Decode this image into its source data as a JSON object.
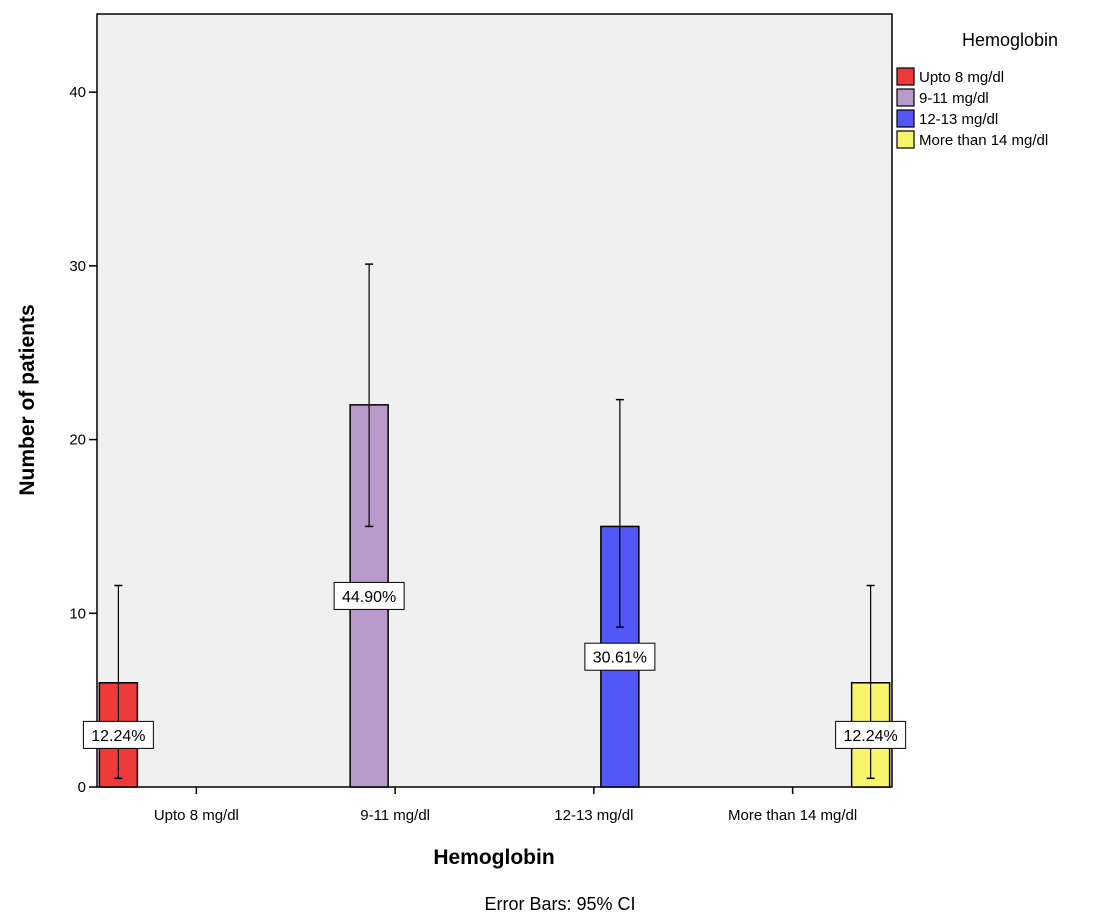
{
  "chart_data": {
    "type": "bar",
    "categories": [
      "Upto 8 mg/dl",
      "9-11 mg/dl",
      "12-13 mg/dl",
      "More than 14 mg/dl"
    ],
    "values": [
      6,
      22,
      15,
      6
    ],
    "error_bars": [
      {
        "low": 0.5,
        "high": 11.6
      },
      {
        "low": 15.0,
        "high": 30.1
      },
      {
        "low": 9.2,
        "high": 22.3
      },
      {
        "low": 0.5,
        "high": 11.6
      }
    ],
    "data_labels": [
      "12.24%",
      "44.90%",
      "30.61%",
      "12.24%"
    ],
    "colors": [
      "#ee3a3a",
      "#b79ac9",
      "#5257f7",
      "#f8f56a"
    ],
    "xlabel": "Hemoglobin",
    "ylabel": "Number of patients",
    "ylim": [
      0,
      44.5
    ],
    "yticks": [
      0,
      10,
      20,
      30,
      40
    ],
    "legend": {
      "title": "Hemoglobin",
      "placement": "right",
      "entries": [
        "Upto 8 mg/dl",
        "9-11 mg/dl",
        "12-13 mg/dl",
        "More than 14 mg/dl"
      ]
    },
    "footnote": "Error Bars: 95% CI",
    "plot_background": "#f0f0f0",
    "grid": false
  }
}
